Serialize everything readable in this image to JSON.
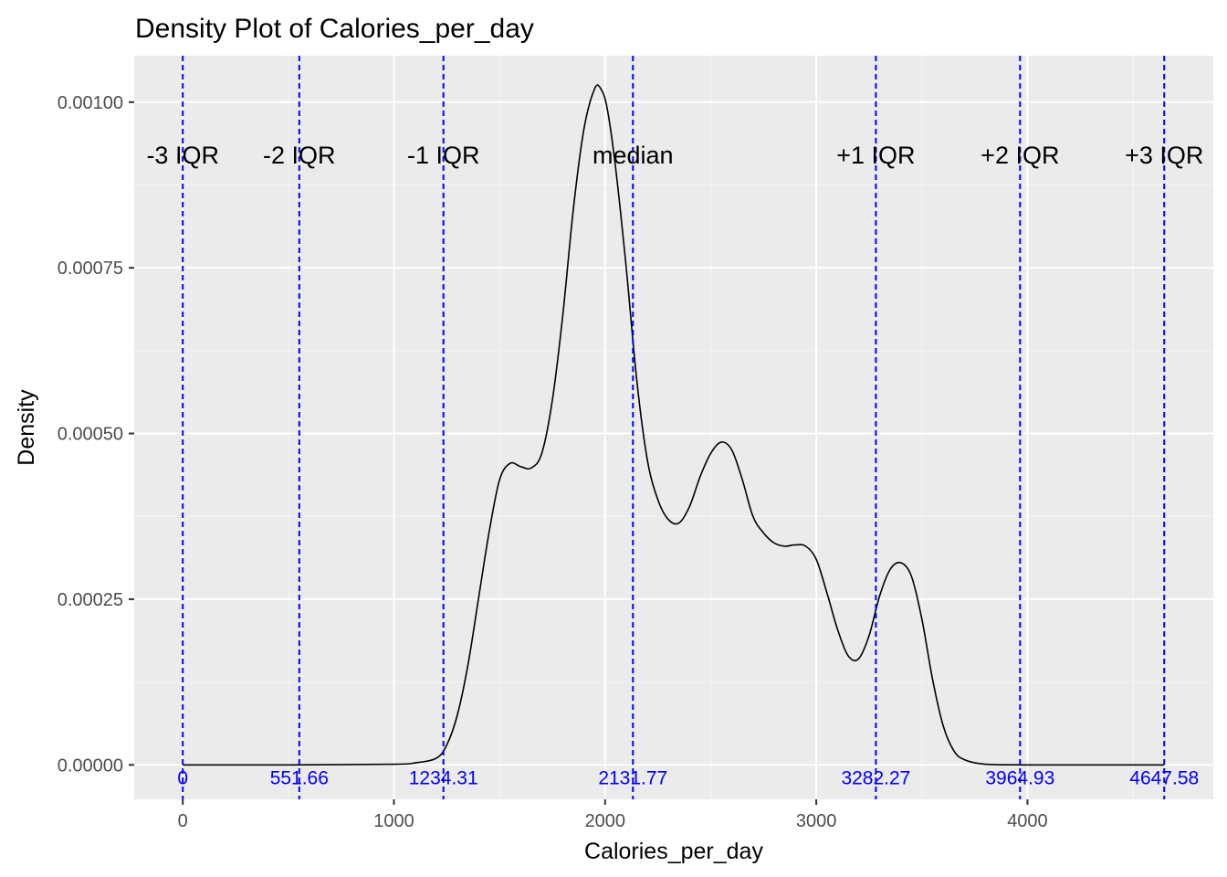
{
  "chart_data": {
    "type": "line",
    "title": "Density Plot of Calories_per_day",
    "xlabel": "Calories_per_day",
    "ylabel": "Density",
    "xlim": [
      -230,
      4880
    ],
    "ylim": [
      -5.2e-05,
      0.00107
    ],
    "x_ticks": [
      0,
      1000,
      2000,
      3000,
      4000
    ],
    "x_tick_labels": [
      "0",
      "1000",
      "2000",
      "3000",
      "4000"
    ],
    "y_ticks": [
      0,
      0.00025,
      0.0005,
      0.00075,
      0.001
    ],
    "y_tick_labels": [
      "0.00000",
      "0.00025",
      "0.00050",
      "0.00075",
      "0.00100"
    ],
    "grid": true,
    "background": "#EBEBEB",
    "series": [
      {
        "color": "#000000",
        "x": [
          0,
          500,
          1000,
          1100,
          1200,
          1250,
          1300,
          1350,
          1400,
          1450,
          1500,
          1550,
          1600,
          1650,
          1700,
          1750,
          1800,
          1850,
          1900,
          1950,
          1980,
          2010,
          2050,
          2100,
          2150,
          2200,
          2250,
          2300,
          2350,
          2400,
          2450,
          2500,
          2550,
          2600,
          2650,
          2700,
          2750,
          2800,
          2850,
          2900,
          2950,
          3000,
          3050,
          3100,
          3150,
          3200,
          3250,
          3300,
          3350,
          3400,
          3450,
          3500,
          3550,
          3600,
          3650,
          3700,
          3800,
          4000,
          4300,
          4647
        ],
        "y": [
          0,
          0,
          1e-06,
          3e-06,
          1e-05,
          3e-05,
          7.5e-05,
          0.00015,
          0.00025,
          0.00035,
          0.00043,
          0.000455,
          0.00045,
          0.000448,
          0.00047,
          0.00055,
          0.00068,
          0.00084,
          0.00096,
          0.00102,
          0.00102,
          0.00099,
          0.0009,
          0.00075,
          0.00058,
          0.00046,
          0.0004,
          0.00037,
          0.000365,
          0.00039,
          0.000435,
          0.00047,
          0.000487,
          0.000475,
          0.00043,
          0.000375,
          0.00035,
          0.000335,
          0.00033,
          0.000332,
          0.00033,
          0.00031,
          0.00026,
          0.000205,
          0.000165,
          0.00016,
          0.000195,
          0.000255,
          0.000295,
          0.000305,
          0.000285,
          0.00022,
          0.00013,
          6e-05,
          2.2e-05,
          8e-06,
          1e-06,
          0,
          0,
          0
        ]
      }
    ],
    "reference_lines": {
      "color": "#0000FF",
      "style": "dashed",
      "items": [
        {
          "x": 0,
          "label": "-3 IQR",
          "value_label": "0"
        },
        {
          "x": 551.66,
          "label": "-2 IQR",
          "value_label": "551.66"
        },
        {
          "x": 1234.31,
          "label": "-1 IQR",
          "value_label": "1234.31"
        },
        {
          "x": 2131.77,
          "label": "median",
          "value_label": "2131.77"
        },
        {
          "x": 3282.27,
          "label": "+1 IQR",
          "value_label": "3282.27"
        },
        {
          "x": 3964.93,
          "label": "+2 IQR",
          "value_label": "3964.93"
        },
        {
          "x": 4647.58,
          "label": "+3 IQR",
          "value_label": "4647.58"
        }
      ],
      "label_y": 0.00092,
      "value_label_y": -1.8e-05
    }
  }
}
